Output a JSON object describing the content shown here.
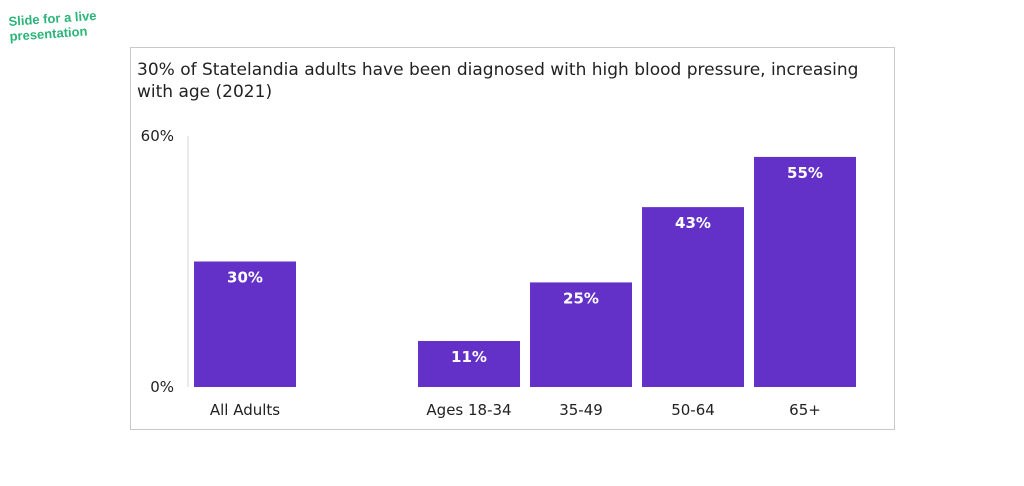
{
  "stamp_text": "Slide for a live presentation",
  "colors": {
    "bar": "#6331c8",
    "label_inside": "#ffffff",
    "axis_text": "#222222",
    "stamp": "#2cb57a"
  },
  "chart_data": {
    "type": "bar",
    "title": "30% of Statelandia adults have been diagnosed with high blood pressure, increasing with age (2021)",
    "xlabel": "",
    "ylabel": "",
    "categories": [
      "All Adults",
      "Ages 18-34",
      "35-49",
      "50-64",
      "65+"
    ],
    "values": [
      30,
      11,
      25,
      43,
      55
    ],
    "data_labels": [
      "30%",
      "11%",
      "25%",
      "43%",
      "55%"
    ],
    "ylim": [
      0,
      60
    ],
    "y_ticks": [
      0,
      60
    ],
    "y_tick_labels": [
      "0%",
      "60%"
    ],
    "grid": false,
    "legend": "none"
  }
}
